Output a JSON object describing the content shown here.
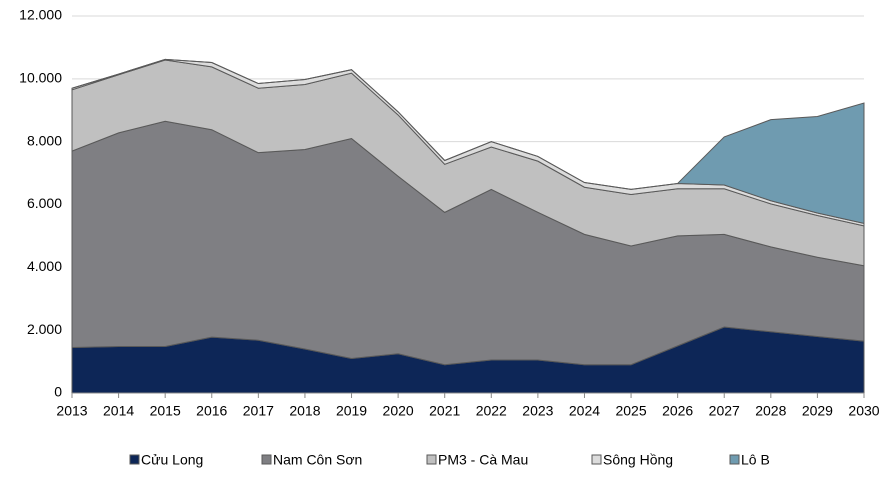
{
  "chart_data": {
    "type": "stacked_area",
    "categories": [
      "2013",
      "2014",
      "2015",
      "2016",
      "2017",
      "2018",
      "2019",
      "2020",
      "2021",
      "2022",
      "2023",
      "2024",
      "2025",
      "2026",
      "2027",
      "2028",
      "2029",
      "2030"
    ],
    "series": [
      {
        "name": "Cửu Long",
        "color": "#0d2657",
        "values": [
          1450,
          1480,
          1480,
          1780,
          1680,
          1400,
          1100,
          1250,
          900,
          1050,
          1050,
          900,
          900,
          1500,
          2100,
          1950,
          1800,
          1650
        ]
      },
      {
        "name": "Nam Côn Sơn",
        "color": "#7f7f83",
        "values": [
          6250,
          6800,
          7170,
          6600,
          5970,
          6350,
          7000,
          5650,
          4850,
          5430,
          4700,
          4150,
          3780,
          3500,
          2950,
          2700,
          2520,
          2400
        ]
      },
      {
        "name": "PM3 - Cà Mau",
        "color": "#c0c0c0",
        "values": [
          1950,
          1850,
          1950,
          2000,
          2050,
          2070,
          2080,
          1950,
          1530,
          1350,
          1630,
          1500,
          1640,
          1500,
          1450,
          1370,
          1330,
          1270
        ]
      },
      {
        "name": "Sông Hồng",
        "color": "#dcdcdc",
        "values": [
          50,
          20,
          20,
          140,
          150,
          160,
          110,
          100,
          120,
          170,
          150,
          150,
          160,
          170,
          120,
          100,
          80,
          80
        ]
      },
      {
        "name": "Lô B",
        "color": "#6f9bb0",
        "values": [
          0,
          0,
          0,
          0,
          0,
          0,
          0,
          0,
          0,
          0,
          0,
          0,
          0,
          0,
          1530,
          2580,
          3070,
          3830
        ]
      }
    ],
    "ylim": [
      0,
      12000
    ],
    "yticks": [
      0,
      {
        "value": 2000,
        "label": "2.000"
      },
      {
        "value": 4000,
        "label": "4.000"
      },
      {
        "value": 6000,
        "label": "6.000"
      },
      {
        "value": 8000,
        "label": "8.000"
      },
      {
        "value": 10000,
        "label": "10.000"
      },
      {
        "value": 12000,
        "label": "12.000"
      }
    ],
    "grid": true
  }
}
